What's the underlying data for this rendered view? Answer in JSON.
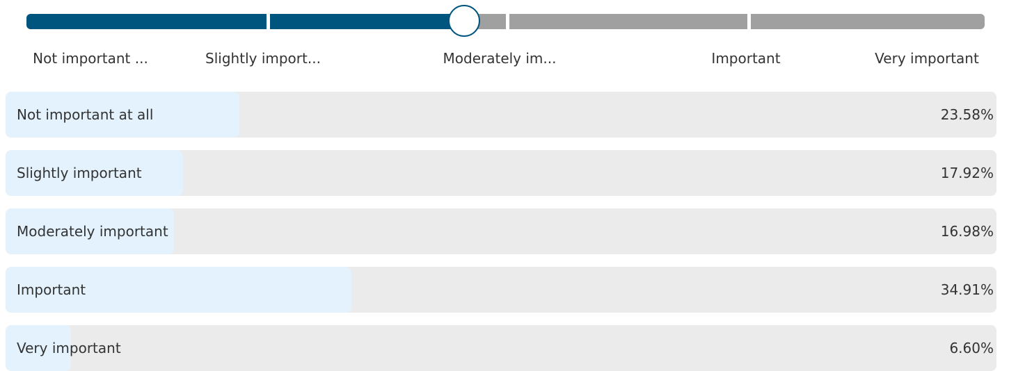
{
  "slider": {
    "labels": [
      "Not important ...",
      "Slightly import...",
      "Moderately im...",
      "Important",
      "Very important"
    ]
  },
  "results": {
    "type": "bar",
    "categories": [
      "Not important at all",
      "Slightly important",
      "Moderately important",
      "Important",
      "Very important"
    ],
    "values": [
      23.58,
      17.92,
      16.98,
      34.91,
      6.6
    ],
    "value_labels": [
      "23.58%",
      "17.92%",
      "16.98%",
      "34.91%",
      "6.60%"
    ],
    "xlim": [
      0,
      100
    ],
    "color": "#e3f2fc"
  }
}
